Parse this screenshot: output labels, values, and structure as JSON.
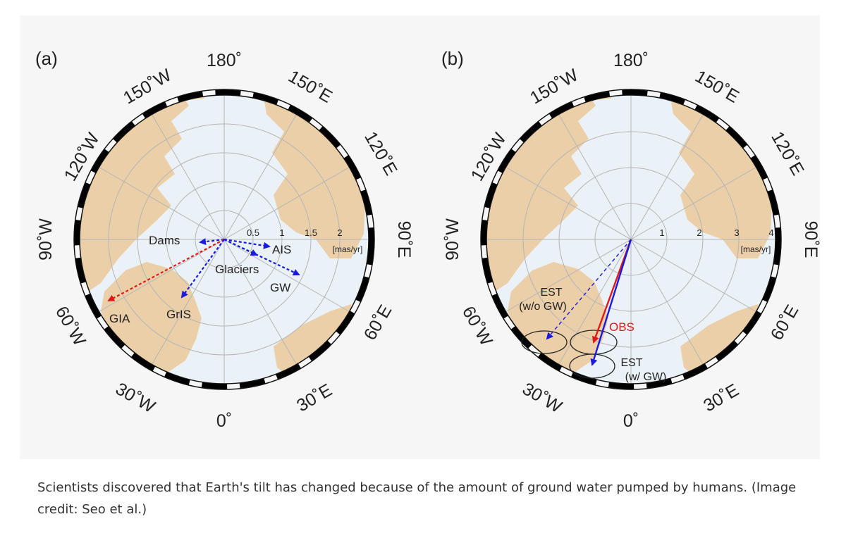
{
  "panels": [
    {
      "label": "(a)",
      "degree_labels": {
        "n180": "180˚",
        "w150": "150˚W",
        "e150": "150˚E",
        "w120": "120˚W",
        "e120": "120˚E",
        "w90": "90˚W",
        "e90": "90˚E",
        "w60": "60˚W",
        "e60": "60˚E",
        "w30": "30˚W",
        "e30": "30˚E",
        "n0": "0˚"
      },
      "scale_ticks": [
        "0.5",
        "1",
        "1.5",
        "2"
      ],
      "unit": "[mas/yr]",
      "vector_labels": {
        "dams": "Dams",
        "ais": "AIS",
        "glaciers": "Glaciers",
        "gw": "GW",
        "gia": "GIA",
        "gris": "GrIS"
      }
    },
    {
      "label": "(b)",
      "degree_labels": {
        "n180": "180˚",
        "w150": "150˚W",
        "e150": "150˚E",
        "w120": "120˚W",
        "e120": "120˚E",
        "w90": "90˚W",
        "e90": "90˚E",
        "w60": "60˚W",
        "e60": "60˚E",
        "w30": "30˚W",
        "e30": "30˚E",
        "n0": "0˚"
      },
      "scale_ticks": [
        "1",
        "2",
        "3",
        "4"
      ],
      "unit": "[mas/yr]",
      "vector_labels": {
        "est_wo_line1": "EST",
        "est_wo_line2": "(w/o GW)",
        "obs": "OBS",
        "est_w_line1": "EST",
        "est_w_line2": "(w/ GW)"
      }
    }
  ],
  "colors": {
    "land": "#ebcfa8",
    "ocean": "#eaf2f8",
    "grid": "#b5b5b5",
    "red": "#e01818",
    "blue": "#1a1ae0"
  },
  "caption": "Scientists discovered that Earth's tilt has changed because of the amount of ground water pumped by humans. (Image credit: Seo et al.)"
}
